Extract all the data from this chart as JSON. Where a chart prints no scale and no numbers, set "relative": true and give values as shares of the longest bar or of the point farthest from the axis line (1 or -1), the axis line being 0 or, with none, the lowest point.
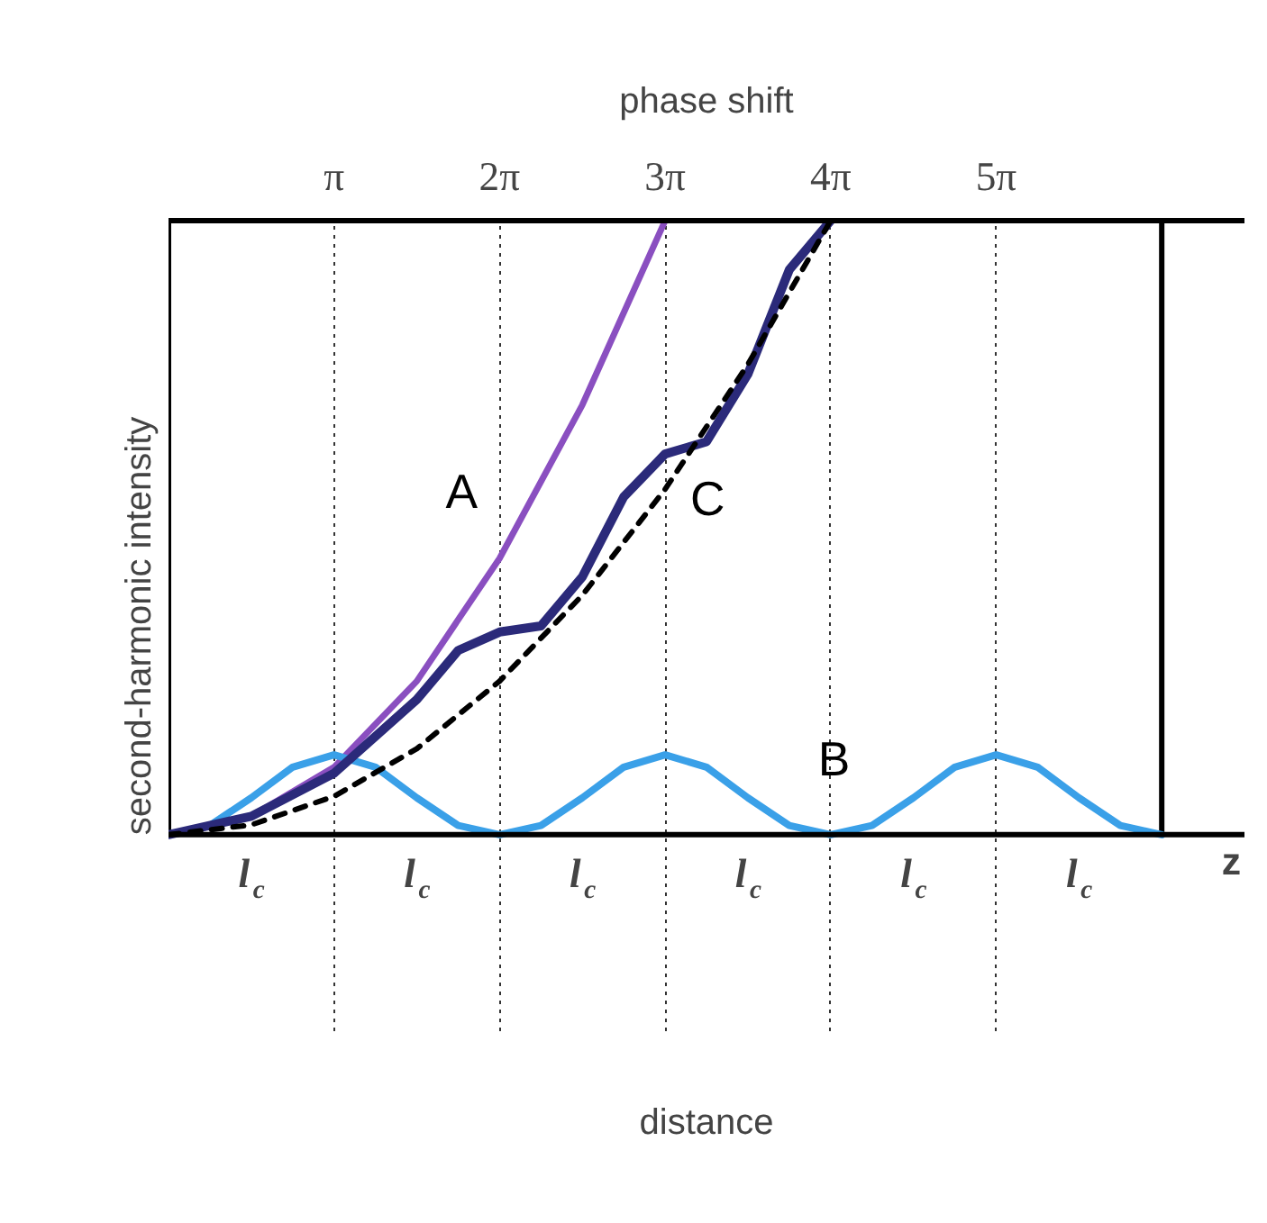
{
  "chart_data": {
    "type": "line",
    "relative": true,
    "xlabel": "phase shift",
    "x2label": "distance",
    "ylabel": "second-harmonic intensity",
    "xlim": [
      0,
      20.42
    ],
    "xticks": [
      {
        "value": 3.1416,
        "label": "π"
      },
      {
        "value": 6.2832,
        "label": "2π"
      },
      {
        "value": 9.4248,
        "label": "3π"
      },
      {
        "value": 12.566,
        "label": "4π"
      },
      {
        "value": 15.708,
        "label": "5π"
      }
    ],
    "grid": "x",
    "legend": false,
    "ref_lines": [
      {
        "axis": "x",
        "value": 18.85,
        "color": "#000000"
      }
    ],
    "annotations": [
      "l$_{c}$",
      "l$_{c}$",
      "l$_{c}$",
      "l$_{c}$",
      "l$_{c}$",
      "l$_{c}$",
      "z"
    ],
    "series": [
      {
        "name": "A",
        "color": "#8a4fc0",
        "x": [
          0,
          1.571,
          3.142,
          4.712,
          6.283,
          7.854,
          9.425
        ],
        "values": [
          0,
          0.03,
          0.11,
          0.25,
          0.45,
          0.7,
          1
        ]
      },
      {
        "name": "B",
        "color": "#3aa0e8",
        "x": [
          0,
          0.785,
          1.571,
          2.356,
          3.142,
          3.927,
          4.712,
          5.498,
          6.283,
          7.069,
          7.854,
          8.639,
          9.425,
          10.21,
          10.996,
          11.781,
          12.566,
          13.352,
          14.137,
          14.923,
          15.708,
          16.493,
          17.279,
          18.064,
          18.85
        ],
        "values": [
          0,
          0.015,
          0.06,
          0.11,
          0.13,
          0.11,
          0.06,
          0.015,
          0,
          0.015,
          0.06,
          0.11,
          0.13,
          0.11,
          0.06,
          0.015,
          0,
          0.015,
          0.06,
          0.11,
          0.13,
          0.11,
          0.06,
          0.015,
          0
        ]
      },
      {
        "name": "C",
        "color": "#2b2a7a",
        "x": [
          0,
          1.571,
          3.142,
          4.712,
          5.498,
          6.283,
          7.069,
          7.854,
          8.639,
          9.425,
          10.21,
          10.996,
          11.781,
          12.566
        ],
        "values": [
          0,
          0.03,
          0.1,
          0.22,
          0.3,
          0.33,
          0.34,
          0.42,
          0.55,
          0.62,
          0.64,
          0.75,
          0.92,
          1
        ]
      },
      {
        "color": "#000000",
        "line_style": "dashed",
        "x": [
          0,
          1.571,
          3.142,
          4.712,
          6.283,
          7.854,
          9.425,
          10.996,
          12.566
        ],
        "values": [
          0,
          0.016,
          0.0625,
          0.14,
          0.25,
          0.39,
          0.5625,
          0.766,
          1
        ]
      }
    ]
  }
}
